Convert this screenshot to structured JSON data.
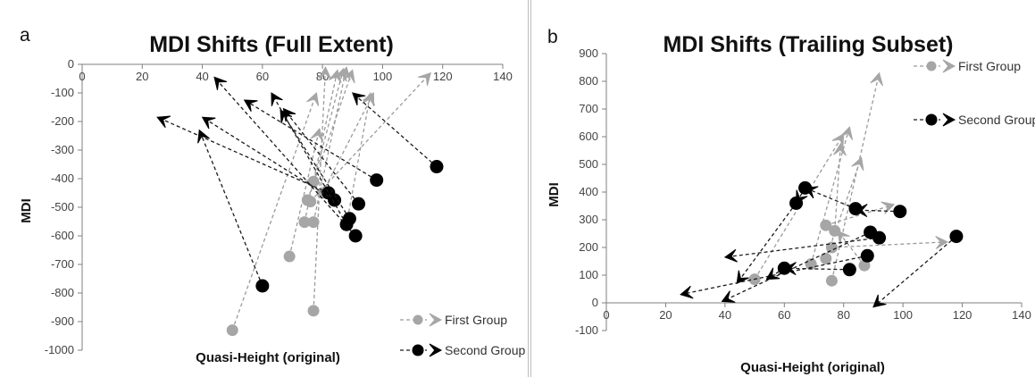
{
  "colors": {
    "first_group": "#a6a6a6",
    "second_group": "#000000",
    "first_group_line": "#9a9a9a",
    "second_group_line": "#1a1a1a",
    "axis": "#7f7f7f"
  },
  "chart_data": [
    {
      "type": "scatter",
      "panel_label": "a",
      "title": "MDI Shifts (Full Extent)",
      "xlabel": "Quasi-Height (original)",
      "ylabel": "MDI",
      "xlim": [
        0,
        140
      ],
      "ylim": [
        -1000,
        0
      ],
      "x_ticks": [
        0,
        20,
        40,
        60,
        80,
        100,
        120,
        140
      ],
      "y_ticks": [
        0,
        -100,
        -200,
        -300,
        -400,
        -500,
        -600,
        -700,
        -800,
        -900,
        -1000
      ],
      "x_axis_position": "top",
      "grid": false,
      "legend_position": "bottom-right",
      "series": [
        {
          "name": "First Group",
          "segments": [
            [
              [
                50,
                -930
              ],
              [
                78,
                -100
              ]
            ],
            [
              [
                69,
                -672
              ],
              [
                79,
                -225
              ]
            ],
            [
              [
                77,
                -862
              ],
              [
                81,
                -10
              ]
            ],
            [
              [
                74,
                -552
              ],
              [
                85,
                -20
              ]
            ],
            [
              [
                77,
                -552
              ],
              [
                88,
                -10
              ]
            ],
            [
              [
                75,
                -475
              ],
              [
                90,
                -20
              ]
            ],
            [
              [
                88,
                -560
              ],
              [
                96,
                -100
              ]
            ],
            [
              [
                80,
                -450
              ],
              [
                97,
                -100
              ]
            ],
            [
              [
                76,
                -480
              ],
              [
                116,
                -30
              ]
            ],
            [
              [
                77,
                -410
              ],
              [
                87,
                -15
              ]
            ]
          ]
        },
        {
          "name": "Second Group",
          "segments": [
            [
              [
                60,
                -775
              ],
              [
                39,
                -230
              ]
            ],
            [
              [
                91,
                -600
              ],
              [
                44,
                -45
              ]
            ],
            [
              [
                82,
                -450
              ],
              [
                25,
                -185
              ]
            ],
            [
              [
                84,
                -475
              ],
              [
                40,
                -185
              ]
            ],
            [
              [
                88,
                -560
              ],
              [
                63,
                -100
              ]
            ],
            [
              [
                98,
                -405
              ],
              [
                54,
                -125
              ]
            ],
            [
              [
                118,
                -358
              ],
              [
                90,
                -100
              ]
            ],
            [
              [
                92,
                -488
              ],
              [
                67,
                -155
              ]
            ],
            [
              [
                89,
                -540
              ],
              [
                66,
                -160
              ]
            ]
          ]
        }
      ]
    },
    {
      "type": "scatter",
      "panel_label": "b",
      "title": "MDI Shifts (Trailing Subset)",
      "xlabel": "Quasi-Height (original)",
      "ylabel": "MDI",
      "xlim": [
        0,
        140
      ],
      "ylim": [
        -100,
        900
      ],
      "x_ticks": [
        0,
        20,
        40,
        60,
        80,
        100,
        120,
        140
      ],
      "y_ticks": [
        -100,
        0,
        100,
        200,
        300,
        400,
        500,
        600,
        700,
        800,
        900
      ],
      "x_axis_position": "zero",
      "grid": false,
      "legend_position": "top-right",
      "series": [
        {
          "name": "First Group",
          "segments": [
            [
              [
                50,
                85
              ],
              [
                80,
                610
              ]
            ],
            [
              [
                69,
                140
              ],
              [
                82,
                635
              ]
            ],
            [
              [
                76,
                80
              ],
              [
                92,
                830
              ]
            ],
            [
              [
                74,
                160
              ],
              [
                86,
                525
              ]
            ],
            [
              [
                74,
                280
              ],
              [
                97,
                355
              ]
            ],
            [
              [
                76,
                200
              ],
              [
                115,
                220
              ]
            ],
            [
              [
                87,
                135
              ],
              [
                78,
                260
              ]
            ],
            [
              [
                77,
                260
              ],
              [
                79,
                575
              ]
            ]
          ]
        },
        {
          "name": "Second Group",
          "segments": [
            [
              [
                118,
                240
              ],
              [
                90,
                -15
              ]
            ],
            [
              [
                92,
                235
              ],
              [
                40,
                165
              ]
            ],
            [
              [
                99,
                330
              ],
              [
                84,
                335
              ]
            ],
            [
              [
                84,
                340
              ],
              [
                67,
                415
              ]
            ],
            [
              [
                67,
                415
              ],
              [
                64,
                360
              ]
            ],
            [
              [
                64,
                360
              ],
              [
                44,
                70
              ]
            ],
            [
              [
                88,
                170
              ],
              [
                25,
                30
              ]
            ],
            [
              [
                82,
                120
              ],
              [
                60,
                125
              ]
            ],
            [
              [
                89,
                255
              ],
              [
                39,
                5
              ]
            ],
            [
              [
                60,
                125
              ],
              [
                54,
                85
              ]
            ]
          ]
        }
      ]
    }
  ]
}
